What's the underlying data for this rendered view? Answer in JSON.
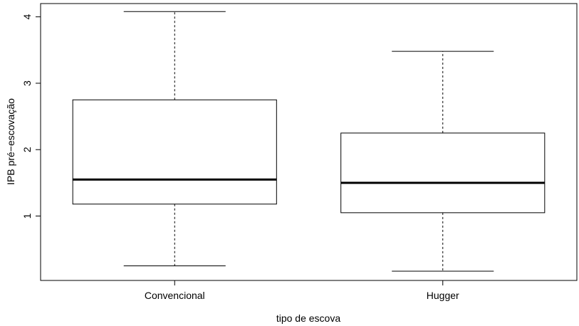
{
  "chart_data": {
    "type": "boxplot",
    "title": "",
    "xlabel": "tipo de escova",
    "ylabel": "IPB pré−escovação",
    "categories": [
      "Convencional",
      "Hugger"
    ],
    "boxes": [
      {
        "category": "Convencional",
        "min": 0.25,
        "q1": 1.18,
        "median": 1.55,
        "q3": 2.75,
        "max": 4.08
      },
      {
        "category": "Hugger",
        "min": 0.17,
        "q1": 1.05,
        "median": 1.5,
        "q3": 2.25,
        "max": 3.48
      }
    ],
    "y_ticks": [
      1,
      2,
      3,
      4
    ],
    "ylim": [
      0.03,
      4.2
    ],
    "grid": false,
    "legend": "none"
  }
}
